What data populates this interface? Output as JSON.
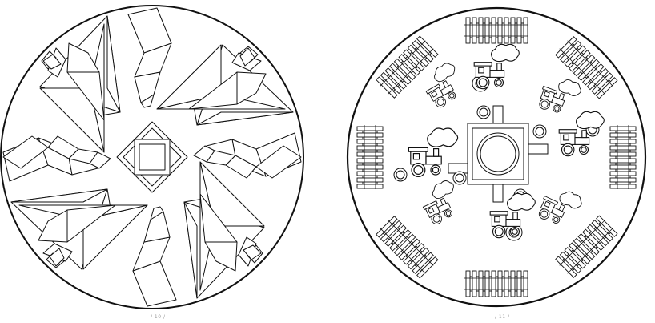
{
  "page": {
    "background": "#ffffff",
    "line_color": "#111111"
  },
  "left_mandala": {
    "name": "tangram-birds-mandala",
    "page_number": "/ 10 /"
  },
  "right_mandala": {
    "name": "train-tracks-mandala",
    "page_number": "/ 11 /"
  }
}
